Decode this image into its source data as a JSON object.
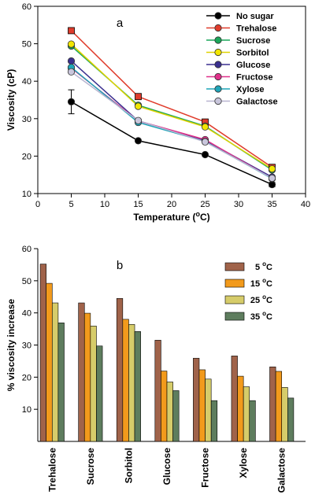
{
  "chart_data": [
    {
      "panel": "a",
      "type": "line",
      "xlabel": "Temperature (°C)",
      "ylabel": "Viscosity (cP)",
      "xlim": [
        0,
        40
      ],
      "ylim": [
        10,
        60
      ],
      "xticks": [
        0,
        5,
        10,
        15,
        20,
        25,
        30,
        35,
        40
      ],
      "yticks": [
        10,
        20,
        30,
        40,
        50,
        60
      ],
      "x": [
        5,
        15,
        25,
        35
      ],
      "legend_position": "top-right",
      "series": [
        {
          "name": "No sugar",
          "color": "#000000",
          "values": [
            34.5,
            24.1,
            20.4,
            12.4
          ],
          "errors": [
            3.2,
            0,
            0,
            0.6
          ]
        },
        {
          "name": "Trehalose",
          "color": "#e03c2c",
          "values": [
            53.5,
            35.9,
            29.1,
            17.0
          ],
          "errors": [
            0.5,
            0.5,
            0.5,
            0.5
          ]
        },
        {
          "name": "Sucrose",
          "color": "#1aa65a",
          "values": [
            49.4,
            33.6,
            28.0,
            16.3
          ],
          "errors": [
            0,
            0,
            0,
            0
          ]
        },
        {
          "name": "Sorbitol",
          "color": "#f2e600",
          "values": [
            49.9,
            33.3,
            27.8,
            16.6
          ],
          "errors": [
            0,
            0,
            0,
            0
          ]
        },
        {
          "name": "Glucose",
          "color": "#3a2f8f",
          "values": [
            45.4,
            29.4,
            24.2,
            14.4
          ],
          "errors": [
            0,
            0,
            0,
            0
          ]
        },
        {
          "name": "Fructose",
          "color": "#e0308a",
          "values": [
            43.5,
            29.4,
            24.4,
            14.0
          ],
          "errors": [
            0,
            0,
            0,
            0
          ]
        },
        {
          "name": "Xylose",
          "color": "#1fa5b8",
          "values": [
            43.7,
            29.0,
            23.9,
            14.0
          ],
          "errors": [
            0,
            0,
            0,
            0
          ]
        },
        {
          "name": "Galactose",
          "color": "#c9c6dc",
          "values": [
            42.5,
            29.5,
            23.8,
            14.1
          ],
          "errors": [
            0,
            0,
            0,
            0
          ]
        }
      ]
    },
    {
      "panel": "b",
      "type": "bar",
      "ylabel": "% viscosity increase",
      "ylim": [
        0,
        60
      ],
      "yticks": [
        10,
        20,
        30,
        40,
        50,
        60
      ],
      "categories": [
        "Trehalose",
        "Sucrose",
        "Sorbitol",
        "Glucose",
        "Fructose",
        "Xylose",
        "Galactose"
      ],
      "legend_position": "top-right",
      "series": [
        {
          "name": "5 °C",
          "color": "#a0634a",
          "values": [
            55.2,
            43.1,
            44.5,
            31.5,
            25.9,
            26.6,
            23.2
          ]
        },
        {
          "name": "15 °C",
          "color": "#f29a1c",
          "values": [
            49.2,
            39.9,
            38.0,
            21.9,
            22.3,
            20.3,
            21.8
          ]
        },
        {
          "name": "25 °C",
          "color": "#d6cc6a",
          "values": [
            43.1,
            35.9,
            36.4,
            18.5,
            19.4,
            17.0,
            16.8
          ]
        },
        {
          "name": "35 °C",
          "color": "#5e7d5e",
          "values": [
            36.9,
            29.7,
            34.2,
            15.8,
            12.7,
            12.7,
            13.5
          ]
        }
      ]
    }
  ]
}
